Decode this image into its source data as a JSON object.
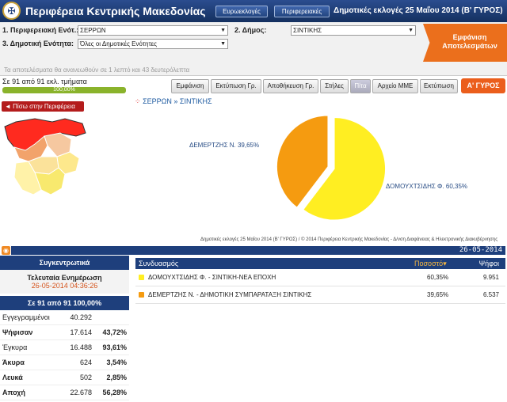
{
  "header": {
    "title": "Περιφέρεια Κεντρικής Μακεδονίας",
    "btn_euro": "Ευρωεκλογές",
    "btn_regional": "Περιφερειακές",
    "election_title": "Δημοτικές εκλογές 25 Μαΐου 2014 (Β' ΓΥΡΟΣ)"
  },
  "filters": {
    "unit_label": "1. Περιφερειακή Ενότ.:",
    "unit_value": "ΣΕΡΡΩΝ",
    "municipality_label": "2. Δήμος:",
    "municipality_value": "ΣΙΝΤΙΚΗΣ",
    "municipal_unit_label": "3. Δημοτική Ενότητα:",
    "municipal_unit_value": "Όλες οι Δημοτικές Ενότητες",
    "refresh_note": "Τα αποτελέσματα θα ανανεωθούν σε 1 λεπτό και 43 δευτερόλεπτα",
    "show_button": "Εμφάνιση Αποτελεσμάτων"
  },
  "progress": {
    "count_text": "Σε 91 από 91 εκλ. τμήματα",
    "percent_text": "100,00%",
    "fraction": 1.0
  },
  "toolbar": {
    "display": "Εμφάνιση",
    "print_chart": "Εκτύπωση Γρ.",
    "save_chart": "Αποθήκευση Γρ.",
    "columns": "Στήλες",
    "pie": "Πίτα",
    "media_file": "Αρχείο ΜΜΕ",
    "print": "Εκτύπωση",
    "round": "Α' ΓΥΡΟΣ"
  },
  "back_button": "◄ Πίσω στην Περιφέρεια",
  "breadcrumb": {
    "dots": "⁘",
    "region": "ΣΕΡΡΩΝ",
    "sep": "»",
    "municipality": "ΣΙΝΤΙΚΗΣ"
  },
  "chart_data": {
    "type": "pie",
    "series": [
      {
        "name": "ΔΟΜΟΥΧΤΣΙΔΗΣ Φ.",
        "value": 60.35,
        "label": "ΔΟΜΟΥΧΤΣΙΔΗΣ Φ. 60,35%",
        "color": "#ffee22"
      },
      {
        "name": "ΔΕΜΕΡΤΖΗΣ Ν.",
        "value": 39.65,
        "label": "ΔΕΜΕΡΤΖΗΣ Ν. 39,65%",
        "color": "#f59b10"
      }
    ]
  },
  "footer_note": "Δημοτικές εκλογές 25 Μαΐου 2014 (Β' ΓΥΡΟΣ) / © 2014 Περιφέρεια Κεντρικής Μακεδονίας - Δ/νση Διαφάνειας & Ηλεκτρονικής Διακυβέρνησης",
  "date_bar": "26-05-2014",
  "summary": {
    "header": "Συγκεντρωτικά",
    "last_update_label": "Τελευταία Ενημέρωση",
    "last_update_time": "26-05-2014 04:36:26",
    "sections_line": "Σε 91 από 91   100,00%",
    "rows": [
      {
        "k": "Εγγεγραμμένοι",
        "v": "40.292",
        "p": ""
      },
      {
        "k": "Ψήφισαν",
        "v": "17.614",
        "p": "43,72%"
      },
      {
        "k": "Έγκυρα",
        "v": "16.488",
        "p": "93,61%"
      },
      {
        "k": "Άκυρα",
        "v": "624",
        "p": "3,54%"
      },
      {
        "k": "Λευκά",
        "v": "502",
        "p": "2,85%"
      },
      {
        "k": "Αποχή",
        "v": "22.678",
        "p": "56,28%"
      }
    ]
  },
  "results": {
    "col_combination": "Συνδυασμός",
    "col_percent": "Ποσοστό",
    "col_votes": "Ψήφοι",
    "rows": [
      {
        "name": "ΔΟΜΟΥΧΤΣΙΔΗΣ Φ. - ΣΙΝΤΙΚΗ-ΝΕΑ ΕΠΟΧΗ",
        "percent": "60,35%",
        "votes": "9.951",
        "color": "#ffee22"
      },
      {
        "name": "ΔΕΜΕΡΤΖΗΣ Ν. - ΔΗΜΟΤΙΚΗ ΣΥΜΠΑΡΑΤΑΞΗ ΣΙΝΤΙΚΗΣ",
        "percent": "39,65%",
        "votes": "6.537",
        "color": "#f59b10"
      }
    ]
  }
}
